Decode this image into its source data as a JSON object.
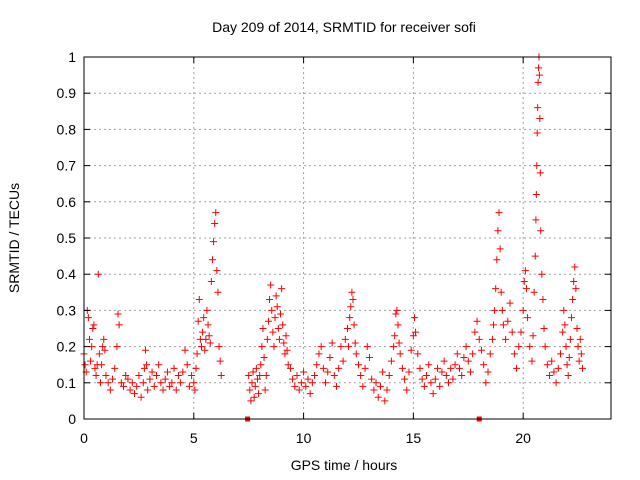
{
  "chart_data": {
    "type": "scatter",
    "title": "Day 209 of 2014, SRMTID for receiver sofi",
    "xlabel": "GPS time / hours",
    "ylabel": "SRMTID / TECUs",
    "xlim": [
      0,
      24
    ],
    "ylim": [
      0,
      1
    ],
    "xticks": [
      0,
      5,
      10,
      15,
      20
    ],
    "yticks": [
      0,
      0.1,
      0.2,
      0.3,
      0.4,
      0.5,
      0.6,
      0.7,
      0.8,
      0.9,
      1
    ],
    "grid": true,
    "marker": "plus",
    "colors": {
      "series": "#ff0000",
      "axis": "#000000",
      "grid": "#a0a0a0"
    },
    "series": [
      {
        "name": "SRMTID",
        "points": [
          [
            0.0,
            0.18
          ],
          [
            0.05,
            0.15
          ],
          [
            0.1,
            0.13
          ],
          [
            0.15,
            0.3
          ],
          [
            0.2,
            0.28
          ],
          [
            0.25,
            0.22
          ],
          [
            0.3,
            0.16
          ],
          [
            0.35,
            0.2
          ],
          [
            0.4,
            0.25
          ],
          [
            0.45,
            0.26
          ],
          [
            0.5,
            0.14
          ],
          [
            0.55,
            0.12
          ],
          [
            0.6,
            0.15
          ],
          [
            0.65,
            0.4
          ],
          [
            0.7,
            0.18
          ],
          [
            0.75,
            0.1
          ],
          [
            0.8,
            0.15
          ],
          [
            0.85,
            0.2
          ],
          [
            0.9,
            0.22
          ],
          [
            0.95,
            0.19
          ],
          [
            1.0,
            0.12
          ],
          [
            1.1,
            0.1
          ],
          [
            1.2,
            0.08
          ],
          [
            1.3,
            0.11
          ],
          [
            1.4,
            0.14
          ],
          [
            1.5,
            0.2
          ],
          [
            1.55,
            0.29
          ],
          [
            1.6,
            0.26
          ],
          [
            1.7,
            0.1
          ],
          [
            1.8,
            0.09
          ],
          [
            1.9,
            0.12
          ],
          [
            2.0,
            0.11
          ],
          [
            2.1,
            0.08
          ],
          [
            2.2,
            0.1
          ],
          [
            2.3,
            0.07
          ],
          [
            2.4,
            0.09
          ],
          [
            2.5,
            0.12
          ],
          [
            2.6,
            0.06
          ],
          [
            2.7,
            0.1
          ],
          [
            2.75,
            0.14
          ],
          [
            2.8,
            0.19
          ],
          [
            2.85,
            0.15
          ],
          [
            2.9,
            0.08
          ],
          [
            3.0,
            0.11
          ],
          [
            3.1,
            0.13
          ],
          [
            3.2,
            0.09
          ],
          [
            3.3,
            0.12
          ],
          [
            3.4,
            0.15
          ],
          [
            3.5,
            0.1
          ],
          [
            3.6,
            0.08
          ],
          [
            3.7,
            0.11
          ],
          [
            3.8,
            0.13
          ],
          [
            3.9,
            0.09
          ],
          [
            4.0,
            0.1
          ],
          [
            4.1,
            0.14
          ],
          [
            4.2,
            0.08
          ],
          [
            4.3,
            0.12
          ],
          [
            4.4,
            0.1
          ],
          [
            4.5,
            0.13
          ],
          [
            4.6,
            0.19
          ],
          [
            4.7,
            0.15
          ],
          [
            4.8,
            0.09
          ],
          [
            4.9,
            0.12
          ],
          [
            5.0,
            0.1
          ],
          [
            5.05,
            0.08
          ],
          [
            5.1,
            0.14
          ],
          [
            5.15,
            0.18
          ],
          [
            5.2,
            0.27
          ],
          [
            5.25,
            0.33
          ],
          [
            5.3,
            0.22
          ],
          [
            5.35,
            0.2
          ],
          [
            5.4,
            0.24
          ],
          [
            5.45,
            0.28
          ],
          [
            5.5,
            0.19
          ],
          [
            5.55,
            0.22
          ],
          [
            5.6,
            0.3
          ],
          [
            5.65,
            0.26
          ],
          [
            5.7,
            0.23
          ],
          [
            5.75,
            0.21
          ],
          [
            5.8,
            0.38
          ],
          [
            5.85,
            0.44
          ],
          [
            5.9,
            0.49
          ],
          [
            5.95,
            0.54
          ],
          [
            6.0,
            0.57
          ],
          [
            6.05,
            0.41
          ],
          [
            6.1,
            0.35
          ],
          [
            6.15,
            0.2
          ],
          [
            6.2,
            0.16
          ],
          [
            6.25,
            0.12
          ],
          [
            7.5,
            0.12
          ],
          [
            7.55,
            0.08
          ],
          [
            7.6,
            0.05
          ],
          [
            7.65,
            0.1
          ],
          [
            7.7,
            0.13
          ],
          [
            7.75,
            0.06
          ],
          [
            7.8,
            0.09
          ],
          [
            7.85,
            0.14
          ],
          [
            7.9,
            0.11
          ],
          [
            7.95,
            0.07
          ],
          [
            8.0,
            0.12
          ],
          [
            8.05,
            0.15
          ],
          [
            8.1,
            0.2
          ],
          [
            8.15,
            0.25
          ],
          [
            8.2,
            0.17
          ],
          [
            8.25,
            0.08
          ],
          [
            8.3,
            0.12
          ],
          [
            8.35,
            0.22
          ],
          [
            8.4,
            0.27
          ],
          [
            8.45,
            0.33
          ],
          [
            8.5,
            0.37
          ],
          [
            8.55,
            0.3
          ],
          [
            8.6,
            0.24
          ],
          [
            8.65,
            0.2
          ],
          [
            8.7,
            0.28
          ],
          [
            8.75,
            0.34
          ],
          [
            8.8,
            0.31
          ],
          [
            8.85,
            0.25
          ],
          [
            8.9,
            0.22
          ],
          [
            8.95,
            0.29
          ],
          [
            9.0,
            0.36
          ],
          [
            9.05,
            0.26
          ],
          [
            9.1,
            0.21
          ],
          [
            9.15,
            0.18
          ],
          [
            9.2,
            0.23
          ],
          [
            9.25,
            0.19
          ],
          [
            9.3,
            0.15
          ],
          [
            9.4,
            0.14
          ],
          [
            9.5,
            0.11
          ],
          [
            9.6,
            0.09
          ],
          [
            9.7,
            0.12
          ],
          [
            9.8,
            0.08
          ],
          [
            9.9,
            0.1
          ],
          [
            10.0,
            0.13
          ],
          [
            10.1,
            0.09
          ],
          [
            10.2,
            0.11
          ],
          [
            10.3,
            0.07
          ],
          [
            10.4,
            0.1
          ],
          [
            10.5,
            0.12
          ],
          [
            10.6,
            0.15
          ],
          [
            10.7,
            0.18
          ],
          [
            10.8,
            0.2
          ],
          [
            10.9,
            0.14
          ],
          [
            11.0,
            0.1
          ],
          [
            11.1,
            0.13
          ],
          [
            11.2,
            0.17
          ],
          [
            11.3,
            0.21
          ],
          [
            11.4,
            0.12
          ],
          [
            11.5,
            0.09
          ],
          [
            11.6,
            0.14
          ],
          [
            11.7,
            0.2
          ],
          [
            11.8,
            0.16
          ],
          [
            11.9,
            0.22
          ],
          [
            12.0,
            0.25
          ],
          [
            12.05,
            0.2
          ],
          [
            12.1,
            0.28
          ],
          [
            12.15,
            0.31
          ],
          [
            12.2,
            0.35
          ],
          [
            12.25,
            0.33
          ],
          [
            12.3,
            0.26
          ],
          [
            12.35,
            0.21
          ],
          [
            12.4,
            0.18
          ],
          [
            12.5,
            0.15
          ],
          [
            12.6,
            0.12
          ],
          [
            12.7,
            0.09
          ],
          [
            12.8,
            0.14
          ],
          [
            12.9,
            0.2
          ],
          [
            13.0,
            0.17
          ],
          [
            13.1,
            0.11
          ],
          [
            13.2,
            0.08
          ],
          [
            13.3,
            0.1
          ],
          [
            13.4,
            0.06
          ],
          [
            13.5,
            0.09
          ],
          [
            13.6,
            0.13
          ],
          [
            13.7,
            0.05
          ],
          [
            13.8,
            0.08
          ],
          [
            13.9,
            0.12
          ],
          [
            14.0,
            0.16
          ],
          [
            14.1,
            0.2
          ],
          [
            14.15,
            0.23
          ],
          [
            14.2,
            0.29
          ],
          [
            14.25,
            0.3
          ],
          [
            14.3,
            0.26
          ],
          [
            14.35,
            0.21
          ],
          [
            14.4,
            0.18
          ],
          [
            14.5,
            0.14
          ],
          [
            14.6,
            0.11
          ],
          [
            14.7,
            0.08
          ],
          [
            14.8,
            0.13
          ],
          [
            14.9,
            0.19
          ],
          [
            15.0,
            0.23
          ],
          [
            15.05,
            0.28
          ],
          [
            15.1,
            0.24
          ],
          [
            15.2,
            0.18
          ],
          [
            15.3,
            0.14
          ],
          [
            15.4,
            0.11
          ],
          [
            15.5,
            0.09
          ],
          [
            15.6,
            0.12
          ],
          [
            15.7,
            0.15
          ],
          [
            15.8,
            0.1
          ],
          [
            15.9,
            0.07
          ],
          [
            16.0,
            0.11
          ],
          [
            16.1,
            0.14
          ],
          [
            16.2,
            0.09
          ],
          [
            16.3,
            0.13
          ],
          [
            16.4,
            0.16
          ],
          [
            16.5,
            0.12
          ],
          [
            16.6,
            0.1
          ],
          [
            16.7,
            0.14
          ],
          [
            16.8,
            0.11
          ],
          [
            16.9,
            0.15
          ],
          [
            17.0,
            0.18
          ],
          [
            17.1,
            0.14
          ],
          [
            17.2,
            0.12
          ],
          [
            17.3,
            0.17
          ],
          [
            17.4,
            0.2
          ],
          [
            17.5,
            0.16
          ],
          [
            17.6,
            0.13
          ],
          [
            17.7,
            0.18
          ],
          [
            17.8,
            0.24
          ],
          [
            17.9,
            0.27
          ],
          [
            18.0,
            0.22
          ],
          [
            18.1,
            0.19
          ],
          [
            18.2,
            0.15
          ],
          [
            18.3,
            0.1
          ],
          [
            18.4,
            0.13
          ],
          [
            18.5,
            0.18
          ],
          [
            18.6,
            0.22
          ],
          [
            18.65,
            0.26
          ],
          [
            18.7,
            0.3
          ],
          [
            18.75,
            0.36
          ],
          [
            18.8,
            0.44
          ],
          [
            18.85,
            0.52
          ],
          [
            18.9,
            0.57
          ],
          [
            18.95,
            0.47
          ],
          [
            19.0,
            0.35
          ],
          [
            19.05,
            0.3
          ],
          [
            19.1,
            0.26
          ],
          [
            19.2,
            0.22
          ],
          [
            19.3,
            0.27
          ],
          [
            19.4,
            0.32
          ],
          [
            19.5,
            0.24
          ],
          [
            19.6,
            0.18
          ],
          [
            19.7,
            0.14
          ],
          [
            19.8,
            0.2
          ],
          [
            19.9,
            0.24
          ],
          [
            20.0,
            0.3
          ],
          [
            20.05,
            0.38
          ],
          [
            20.1,
            0.41
          ],
          [
            20.15,
            0.36
          ],
          [
            20.2,
            0.28
          ],
          [
            20.3,
            0.2
          ],
          [
            20.4,
            0.16
          ],
          [
            20.45,
            0.23
          ],
          [
            20.5,
            0.35
          ],
          [
            20.55,
            0.45
          ],
          [
            20.58,
            0.55
          ],
          [
            20.6,
            0.62
          ],
          [
            20.62,
            0.7
          ],
          [
            20.64,
            0.79
          ],
          [
            20.66,
            0.86
          ],
          [
            20.68,
            0.93
          ],
          [
            20.7,
            0.97
          ],
          [
            20.72,
            1.0
          ],
          [
            20.74,
            0.95
          ],
          [
            20.76,
            0.83
          ],
          [
            20.78,
            0.68
          ],
          [
            20.8,
            0.52
          ],
          [
            20.85,
            0.4
          ],
          [
            20.9,
            0.33
          ],
          [
            20.95,
            0.25
          ],
          [
            21.0,
            0.2
          ],
          [
            21.1,
            0.15
          ],
          [
            21.2,
            0.12
          ],
          [
            21.3,
            0.16
          ],
          [
            21.4,
            0.13
          ],
          [
            21.5,
            0.1
          ],
          [
            21.6,
            0.14
          ],
          [
            21.7,
            0.18
          ],
          [
            21.8,
            0.24
          ],
          [
            21.85,
            0.3
          ],
          [
            21.9,
            0.26
          ],
          [
            21.95,
            0.2
          ],
          [
            22.0,
            0.15
          ],
          [
            22.05,
            0.12
          ],
          [
            22.1,
            0.17
          ],
          [
            22.15,
            0.22
          ],
          [
            22.2,
            0.28
          ],
          [
            22.25,
            0.33
          ],
          [
            22.3,
            0.38
          ],
          [
            22.35,
            0.42
          ],
          [
            22.4,
            0.36
          ],
          [
            22.45,
            0.25
          ],
          [
            22.5,
            0.2
          ],
          [
            22.55,
            0.16
          ],
          [
            22.6,
            0.22
          ],
          [
            22.65,
            0.18
          ],
          [
            22.7,
            0.14
          ]
        ]
      }
    ],
    "gap_markers": [
      7.45,
      18.0
    ]
  }
}
